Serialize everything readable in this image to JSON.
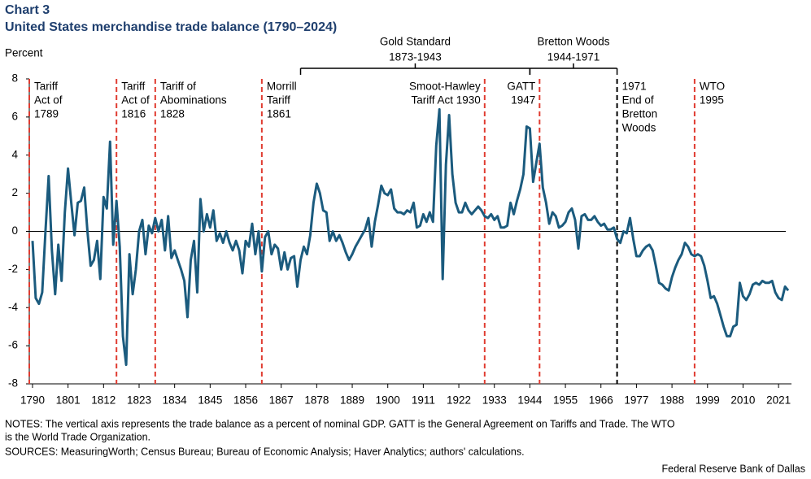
{
  "chart_data": {
    "type": "line",
    "title": "Chart 3",
    "subtitle": "United States merchandise trade balance (1790–2024)",
    "y_label": "Percent",
    "notes": [
      "NOTES: The vertical axis represents the trade balance as a percent of nominal GDP. GATT is the General Agreement on Tariffs and Trade. The WTO",
      "is the World Trade Organization."
    ],
    "sources": "SOURCES: MeasuringWorth; Census Bureau; Bureau of Economic Analysis; Haver Analytics; authors' calculations.",
    "credit": "Federal Reserve Bank of Dallas",
    "xlim": [
      1789,
      2025
    ],
    "xticks": [
      1790,
      1801,
      1812,
      1823,
      1834,
      1845,
      1856,
      1867,
      1878,
      1889,
      1900,
      1911,
      1922,
      1933,
      1944,
      1955,
      1966,
      1977,
      1988,
      1999,
      2010,
      2021
    ],
    "ylim": [
      -8,
      8
    ],
    "yticks": [
      -8,
      -6,
      -4,
      -2,
      0,
      2,
      4,
      6,
      8
    ],
    "events": [
      {
        "year": 1789,
        "label": [
          "Tariff",
          "Act of",
          "1789"
        ],
        "color": "#e03c31",
        "label_side": "right"
      },
      {
        "year": 1816,
        "label": [
          "Tariff",
          "Act of",
          "1816"
        ],
        "color": "#e03c31",
        "label_side": "right"
      },
      {
        "year": 1828,
        "label": [
          "Tariff of",
          "Abominations",
          "1828"
        ],
        "color": "#e03c31",
        "label_side": "right"
      },
      {
        "year": 1861,
        "label": [
          "Morrill",
          "Tariff",
          "1861"
        ],
        "color": "#e03c31",
        "label_side": "right"
      },
      {
        "year": 1930,
        "label": [
          "Smoot-Hawley",
          "Tariff Act 1930"
        ],
        "color": "#e03c31",
        "label_side": "left"
      },
      {
        "year": 1947,
        "label": [
          "GATT",
          "1947"
        ],
        "color": "#e03c31",
        "label_side": "left"
      },
      {
        "year": 1971,
        "label": [
          "1971",
          "End of",
          "Bretton",
          "Woods"
        ],
        "color": "#000000",
        "label_side": "right"
      },
      {
        "year": 1995,
        "label": [
          "WTO",
          "1995"
        ],
        "color": "#e03c31",
        "label_side": "right"
      }
    ],
    "periods": [
      {
        "start": 1873,
        "end": 1944,
        "label": [
          "Gold Standard",
          "1873-1943"
        ]
      },
      {
        "start": 1944,
        "end": 1971,
        "label": [
          "Bretton Woods",
          "1944-1971"
        ]
      }
    ],
    "series": [
      {
        "name": "Trade balance",
        "color": "#1b5b7e",
        "x": [
          1790,
          1791,
          1792,
          1793,
          1794,
          1795,
          1796,
          1797,
          1798,
          1799,
          1800,
          1801,
          1802,
          1803,
          1804,
          1805,
          1806,
          1807,
          1808,
          1809,
          1810,
          1811,
          1812,
          1813,
          1814,
          1815,
          1816,
          1817,
          1818,
          1819,
          1820,
          1821,
          1822,
          1823,
          1824,
          1825,
          1826,
          1827,
          1828,
          1829,
          1830,
          1831,
          1832,
          1833,
          1834,
          1835,
          1836,
          1837,
          1838,
          1839,
          1840,
          1841,
          1842,
          1843,
          1844,
          1845,
          1846,
          1847,
          1848,
          1849,
          1850,
          1851,
          1852,
          1853,
          1854,
          1855,
          1856,
          1857,
          1858,
          1859,
          1860,
          1861,
          1862,
          1863,
          1864,
          1865,
          1866,
          1867,
          1868,
          1869,
          1870,
          1871,
          1872,
          1873,
          1874,
          1875,
          1876,
          1877,
          1878,
          1879,
          1880,
          1881,
          1882,
          1883,
          1884,
          1885,
          1886,
          1887,
          1888,
          1889,
          1890,
          1891,
          1892,
          1893,
          1894,
          1895,
          1896,
          1897,
          1898,
          1899,
          1900,
          1901,
          1902,
          1903,
          1904,
          1905,
          1906,
          1907,
          1908,
          1909,
          1910,
          1911,
          1912,
          1913,
          1914,
          1915,
          1916,
          1917,
          1918,
          1919,
          1920,
          1921,
          1922,
          1923,
          1924,
          1925,
          1926,
          1927,
          1928,
          1929,
          1930,
          1931,
          1932,
          1933,
          1934,
          1935,
          1936,
          1937,
          1938,
          1939,
          1940,
          1941,
          1942,
          1943,
          1944,
          1945,
          1946,
          1947,
          1948,
          1949,
          1950,
          1951,
          1952,
          1953,
          1954,
          1955,
          1956,
          1957,
          1958,
          1959,
          1960,
          1961,
          1962,
          1963,
          1964,
          1965,
          1966,
          1967,
          1968,
          1969,
          1970,
          1971,
          1972,
          1973,
          1974,
          1975,
          1976,
          1977,
          1978,
          1979,
          1980,
          1981,
          1982,
          1983,
          1984,
          1985,
          1986,
          1987,
          1988,
          1989,
          1990,
          1991,
          1992,
          1993,
          1994,
          1995,
          1996,
          1997,
          1998,
          1999,
          2000,
          2001,
          2002,
          2003,
          2004,
          2005,
          2006,
          2007,
          2008,
          2009,
          2010,
          2011,
          2012,
          2013,
          2014,
          2015,
          2016,
          2017,
          2018,
          2019,
          2020,
          2021,
          2022,
          2023,
          2024
        ],
        "values": [
          -0.5,
          -3.5,
          -3.8,
          -3.2,
          0,
          2.9,
          -1,
          -3.3,
          -0.7,
          -2.6,
          1,
          3.3,
          1.5,
          -0.2,
          1.5,
          1.6,
          2.3,
          0,
          -1.8,
          -1.5,
          -0.5,
          -2.5,
          1.8,
          1.2,
          4.7,
          -0.7,
          1.6,
          -0.8,
          -5.5,
          -7,
          -1.2,
          -3.3,
          -2,
          0,
          0.6,
          -1.2,
          0.3,
          -0.1,
          0.7,
          0,
          0.6,
          -1,
          0.8,
          -1.4,
          -1,
          -1.5,
          -2,
          -2.6,
          -4.5,
          -1.5,
          -0.5,
          -3.2,
          1.7,
          0,
          0.9,
          0.2,
          1.1,
          -0.5,
          -0.1,
          -0.6,
          0,
          -0.6,
          -1,
          -0.5,
          -1,
          -2.2,
          -0.5,
          -0.8,
          0.4,
          -1.2,
          0,
          -2.1,
          -0.3,
          0,
          -1.2,
          -0.7,
          -0.9,
          -2,
          -1.1,
          -2,
          -1.4,
          -1.3,
          -2.9,
          -1.5,
          -0.8,
          -1.2,
          -0.2,
          1.5,
          2.5,
          2,
          1.1,
          1,
          -0.5,
          0,
          -0.5,
          -0.2,
          -0.6,
          -1.1,
          -1.5,
          -1.2,
          -0.8,
          -0.5,
          -0.2,
          0.1,
          0.7,
          -0.8,
          0.5,
          1.4,
          2.4,
          2,
          1.9,
          2.2,
          1.2,
          1,
          1,
          0.9,
          1.1,
          1,
          1.5,
          0.2,
          0.3,
          0.9,
          0.5,
          1,
          0.5,
          4.5,
          6.4,
          -2.5,
          3.5,
          6.1,
          3,
          1.5,
          1,
          1,
          1.5,
          1.1,
          0.9,
          1.1,
          1.3,
          1.1,
          0.8,
          0.7,
          0.9,
          0.6,
          0.8,
          0.2,
          0.2,
          0.3,
          1.5,
          0.9,
          1.6,
          2.2,
          3,
          5.5,
          5.4,
          2.6,
          3.6,
          4.6,
          2.3,
          1.5,
          0.4,
          1,
          0.8,
          0.2,
          0.3,
          0.5,
          1,
          1.2,
          0.6,
          -0.9,
          0.8,
          0.9,
          0.6,
          0.6,
          0.8,
          0.5,
          0.3,
          0.4,
          0.1,
          0.1,
          0.2,
          -0.4,
          -0.6,
          0,
          -0.1,
          0.7,
          -0.4,
          -1.3,
          -1.3,
          -1,
          -0.8,
          -0.7,
          -1,
          -1.8,
          -2.7,
          -2.8,
          -3,
          -3.1,
          -2.4,
          -1.9,
          -1.5,
          -1.2,
          -0.6,
          -0.8,
          -1.2,
          -1.3,
          -1.2,
          -1.3,
          -1.8,
          -2.6,
          -3.5,
          -3.4,
          -3.8,
          -4.4,
          -5,
          -5.5,
          -5.5,
          -5,
          -4.9,
          -2.7,
          -3.4,
          -3.6,
          -3.3,
          -2.8,
          -2.7,
          -2.8,
          -2.6,
          -2.7,
          -2.7,
          -2.6,
          -3.2,
          -3.5,
          -3.6,
          -2.9,
          -3.1
        ]
      }
    ]
  }
}
